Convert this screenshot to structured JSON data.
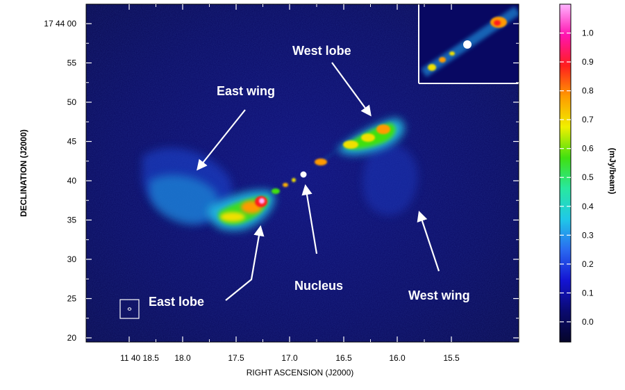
{
  "chart_data": {
    "type": "heatmap",
    "xlabel": "RIGHT ASCENSION (J2000)",
    "ylabel": "DECLINATION (J2000)",
    "x_ticks": [
      "11 40 18.5",
      "18.0",
      "17.5",
      "17.0",
      "16.5",
      "16.0",
      "15.5"
    ],
    "y_ticks": [
      "17 44 00",
      "55",
      "50",
      "45",
      "40",
      "35",
      "30",
      "25",
      "20"
    ],
    "colorbar": {
      "label": "(mJy/beam)",
      "ticks": [
        "1.0",
        "0.9",
        "0.8",
        "0.7",
        "0.6",
        "0.5",
        "0.4",
        "0.3",
        "0.2",
        "0.1",
        "0.0"
      ],
      "range": [
        -0.07,
        1.1
      ],
      "colors": [
        "#05052a",
        "#0a0a70",
        "#1414d2",
        "#2a6af0",
        "#20c8e8",
        "#28e8a0",
        "#40e010",
        "#f0f000",
        "#ff9a00",
        "#ff1e1e",
        "#ff14b0",
        "#ffb4ff"
      ]
    },
    "annotations": [
      "West lobe",
      "East wing",
      "Nucleus",
      "East lobe",
      "West wing"
    ],
    "grid": false,
    "inset": true
  }
}
